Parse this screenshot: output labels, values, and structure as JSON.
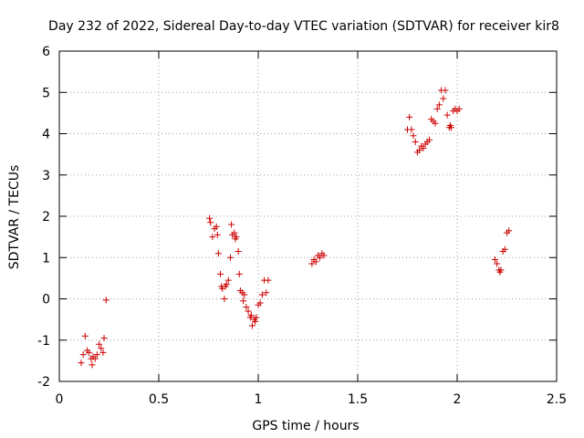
{
  "chart_data": {
    "type": "scatter",
    "title": "Day 232 of 2022, Sidereal Day-to-day VTEC variation (SDTVAR) for receiver kir8",
    "xlabel": "GPS time / hours",
    "ylabel": "SDTVAR / TECUs",
    "xlim": [
      0,
      2.5
    ],
    "ylim": [
      -2,
      6
    ],
    "xticks": [
      0,
      0.5,
      1,
      1.5,
      2,
      2.5
    ],
    "xtick_labels": [
      "0",
      "0.5",
      "1",
      "1.5",
      "2",
      "2.5"
    ],
    "yticks": [
      -2,
      -1,
      0,
      1,
      2,
      3,
      4,
      5,
      6
    ],
    "ytick_labels": [
      "-2",
      "-1",
      "0",
      "1",
      "2",
      "3",
      "4",
      "5",
      "6"
    ],
    "grid": true,
    "marker": "plus",
    "series": [
      {
        "name": "SDTVAR",
        "color": "#cc0000",
        "x": [
          0.11,
          0.12,
          0.13,
          0.14,
          0.15,
          0.16,
          0.165,
          0.17,
          0.18,
          0.19,
          0.2,
          0.21,
          0.22,
          0.225,
          0.235,
          0.755,
          0.76,
          0.77,
          0.78,
          0.79,
          0.795,
          0.8,
          0.81,
          0.815,
          0.82,
          0.83,
          0.835,
          0.84,
          0.85,
          0.86,
          0.865,
          0.87,
          0.88,
          0.885,
          0.89,
          0.9,
          0.905,
          0.91,
          0.92,
          0.925,
          0.93,
          0.94,
          0.95,
          0.96,
          0.965,
          0.97,
          0.98,
          0.985,
          0.99,
          1.0,
          1.01,
          1.02,
          1.03,
          1.04,
          1.05,
          1.27,
          1.28,
          1.29,
          1.3,
          1.31,
          1.32,
          1.33,
          1.75,
          1.76,
          1.77,
          1.78,
          1.79,
          1.8,
          1.81,
          1.82,
          1.83,
          1.84,
          1.85,
          1.86,
          1.87,
          1.88,
          1.89,
          1.9,
          1.91,
          1.92,
          1.93,
          1.94,
          1.95,
          1.96,
          1.965,
          1.97,
          1.98,
          1.99,
          2.0,
          2.01,
          2.19,
          2.2,
          2.21,
          2.215,
          2.22,
          2.23,
          2.24,
          2.25,
          2.26
        ],
        "y": [
          -1.55,
          -1.35,
          -0.9,
          -1.25,
          -1.3,
          -1.45,
          -1.6,
          -1.4,
          -1.45,
          -1.35,
          -1.1,
          -1.2,
          -1.3,
          -0.95,
          -0.03,
          1.95,
          1.85,
          1.5,
          1.7,
          1.75,
          1.55,
          1.1,
          0.6,
          0.3,
          0.25,
          0.0,
          0.3,
          0.35,
          0.45,
          1.0,
          1.8,
          1.55,
          1.6,
          1.45,
          1.5,
          1.15,
          0.6,
          0.2,
          0.15,
          -0.05,
          0.1,
          -0.2,
          -0.3,
          -0.45,
          -0.4,
          -0.65,
          -0.5,
          -0.55,
          -0.45,
          -0.15,
          -0.1,
          0.1,
          0.45,
          0.15,
          0.45,
          0.85,
          0.95,
          0.9,
          1.05,
          1.0,
          1.1,
          1.05,
          4.1,
          4.4,
          4.1,
          3.95,
          3.8,
          3.55,
          3.6,
          3.7,
          3.65,
          3.75,
          3.8,
          3.85,
          4.35,
          4.3,
          4.25,
          4.6,
          4.7,
          5.05,
          4.85,
          5.05,
          4.45,
          4.15,
          4.2,
          4.15,
          4.55,
          4.6,
          4.55,
          4.6,
          0.95,
          0.85,
          0.7,
          0.65,
          0.7,
          1.15,
          1.2,
          1.6,
          1.65
        ]
      }
    ]
  }
}
